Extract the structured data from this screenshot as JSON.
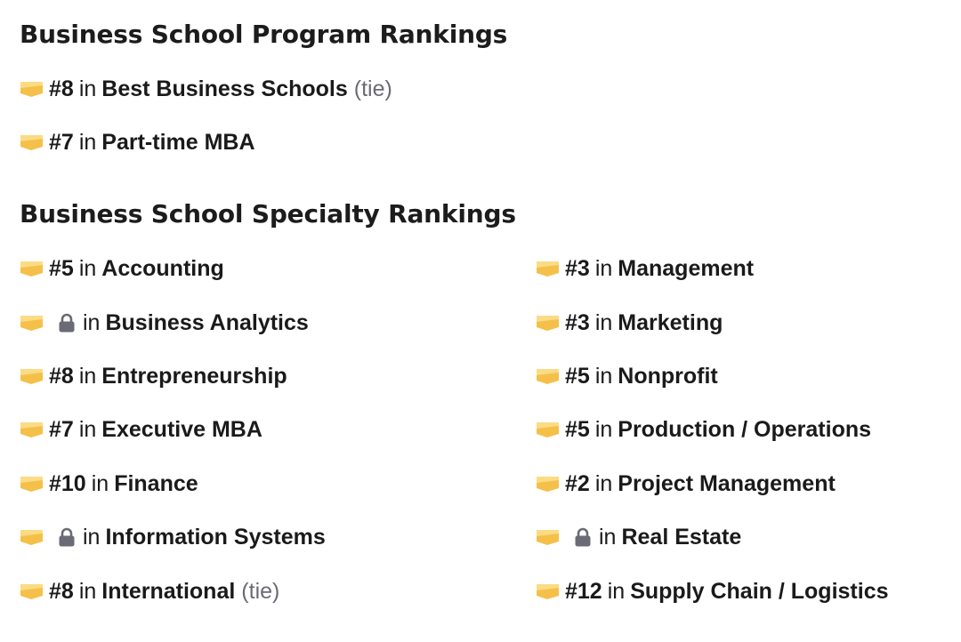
{
  "program": {
    "title": "Business School Program Rankings",
    "items": [
      {
        "rank": "#8",
        "in": "in",
        "name": "Best Business Schools",
        "tie": "(tie)"
      },
      {
        "rank": "#7",
        "in": "in",
        "name": "Part-time MBA"
      }
    ]
  },
  "specialty": {
    "title": "Business School Specialty Rankings",
    "left": [
      {
        "rank": "#5",
        "in": "in",
        "name": "Accounting"
      },
      {
        "locked": true,
        "in": "in",
        "name": "Business Analytics"
      },
      {
        "rank": "#8",
        "in": "in",
        "name": "Entrepreneurship"
      },
      {
        "rank": "#7",
        "in": "in",
        "name": "Executive MBA"
      },
      {
        "rank": "#10",
        "in": "in",
        "name": "Finance"
      },
      {
        "locked": true,
        "in": "in",
        "name": "Information Systems"
      },
      {
        "rank": "#8",
        "in": "in",
        "name": "International",
        "tie": "(tie)"
      }
    ],
    "right": [
      {
        "rank": "#3",
        "in": "in",
        "name": "Management"
      },
      {
        "rank": "#3",
        "in": "in",
        "name": "Marketing"
      },
      {
        "rank": "#5",
        "in": "in",
        "name": "Nonprofit"
      },
      {
        "rank": "#5",
        "in": "in",
        "name": "Production / Operations"
      },
      {
        "rank": "#2",
        "in": "in",
        "name": "Project Management"
      },
      {
        "locked": true,
        "in": "in",
        "name": "Real Estate"
      },
      {
        "rank": "#12",
        "in": "in",
        "name": "Supply Chain / Logistics"
      }
    ]
  },
  "icons": {
    "badge": "ranking-badge-icon",
    "lock": "lock-icon"
  },
  "colors": {
    "badge_main": "#F5C04A",
    "badge_highlight": "#FBDB84",
    "lock": "#6B6B75",
    "tie": "#6B6B75",
    "text": "#1A1A1A"
  }
}
